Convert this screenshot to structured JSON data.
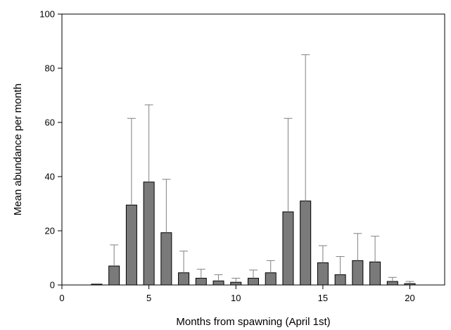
{
  "chart_data": {
    "type": "bar",
    "xlabel": "Months from spawning (April 1st)",
    "ylabel": "Mean abundance per month",
    "xlim": [
      0,
      22
    ],
    "ylim": [
      0,
      100
    ],
    "xticks": [
      0,
      5,
      10,
      15,
      20
    ],
    "yticks": [
      0,
      20,
      40,
      60,
      80,
      100
    ],
    "grid": false,
    "bar_color": "#7a7a7a",
    "error_bar_color": "#808080",
    "series": [
      {
        "x": [
          2,
          3,
          4,
          5,
          6,
          7,
          8,
          9,
          10,
          11,
          12,
          13,
          14,
          15,
          16,
          17,
          18,
          19,
          20
        ],
        "values": [
          0.3,
          7,
          29.5,
          38,
          19.3,
          4.5,
          2.5,
          1.5,
          1,
          2.5,
          4.5,
          27,
          31,
          8.2,
          3.8,
          9,
          8.5,
          1.3,
          0.5
        ],
        "error_upper": [
          0.3,
          14.8,
          61.5,
          66.5,
          39,
          12.5,
          5.8,
          3.8,
          2.5,
          5.5,
          9,
          61.5,
          85,
          14.5,
          10.5,
          19,
          18,
          2.8,
          1.3
        ]
      }
    ]
  }
}
